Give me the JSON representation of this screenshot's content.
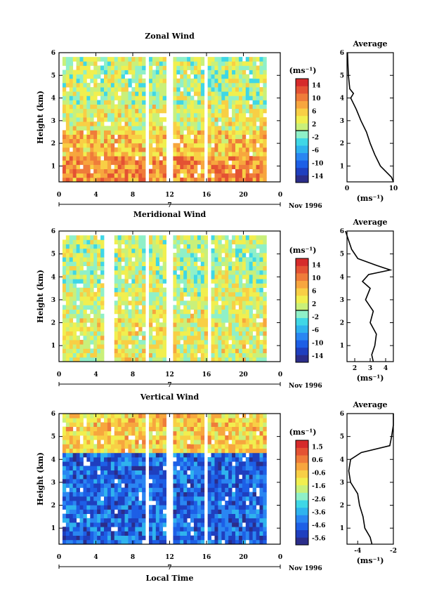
{
  "figure": {
    "xlabel": "Local Time",
    "x_ticks": [
      "0",
      "4",
      "8",
      "12",
      "16",
      "20",
      "0"
    ],
    "date_marker": "7",
    "date_label": "Nov 1996",
    "ylabel": "Height (km)",
    "y_ticks": [
      "1",
      "2",
      "3",
      "4",
      "5",
      "6"
    ],
    "avg_title": "Average",
    "unit_label": "(ms⁻¹)"
  },
  "colormap": [
    "#2b2d8a",
    "#1f3fbf",
    "#1d5fe6",
    "#2a86f2",
    "#2fb3ee",
    "#3fd7e6",
    "#8ff0c8",
    "#c9f07a",
    "#f1ef4f",
    "#f8cf45",
    "#f7a63e",
    "#ef7c3a",
    "#e45233",
    "#d62b2b"
  ],
  "chart_data": [
    {
      "type": "heatmap",
      "title": "Zonal Wind",
      "xlabel": "",
      "ylabel": "Height (km)",
      "x_range": [
        0,
        24
      ],
      "y_range": [
        0.3,
        6
      ],
      "colorbar": {
        "ticks": [
          "14",
          "10",
          "6",
          "2",
          "-2",
          "-6",
          "-10",
          "-14"
        ],
        "range": [
          -16,
          16
        ],
        "marker": 0
      },
      "bands": [
        {
          "y": [
            0.3,
            1.5
          ],
          "value": 9
        },
        {
          "y": [
            1.5,
            2.5
          ],
          "value": 6
        },
        {
          "y": [
            2.5,
            3.7
          ],
          "value": 3
        },
        {
          "y": [
            3.7,
            5.8
          ],
          "value": 1
        }
      ],
      "gaps": [
        [
          0.0,
          0.2
        ],
        [
          9.2,
          9.8
        ],
        [
          11.5,
          12.3
        ],
        [
          15.8,
          16.2
        ],
        [
          22.5,
          24.0
        ]
      ],
      "average": {
        "xlim": [
          0,
          10
        ],
        "xticks": [
          "0",
          "10"
        ],
        "y": [
          0.3,
          0.5,
          1,
          1.5,
          2,
          2.5,
          3,
          3.5,
          4,
          4.2,
          4.4,
          4.6,
          5,
          5.5,
          6
        ],
        "x": [
          10,
          9.6,
          7.2,
          6.0,
          5.0,
          4.2,
          3.0,
          2.0,
          0.8,
          1.4,
          0.6,
          0.5,
          0.3,
          0.2,
          0.1
        ]
      }
    },
    {
      "type": "heatmap",
      "title": "Meridional Wind",
      "xlabel": "",
      "ylabel": "Height (km)",
      "x_range": [
        0,
        24
      ],
      "y_range": [
        0.3,
        6
      ],
      "colorbar": {
        "ticks": [
          "14",
          "10",
          "6",
          "2",
          "-2",
          "-6",
          "-10",
          "-14"
        ],
        "range": [
          -16,
          16
        ],
        "marker": 0
      },
      "bands": [
        {
          "y": [
            0.3,
            1.5
          ],
          "value": 3
        },
        {
          "y": [
            1.5,
            2.5
          ],
          "value": 3
        },
        {
          "y": [
            2.5,
            3.7
          ],
          "value": 2
        },
        {
          "y": [
            3.7,
            5.8
          ],
          "value": 1
        }
      ],
      "gaps": [
        [
          0.0,
          0.2
        ],
        [
          5.0,
          6.0
        ],
        [
          9.2,
          9.8
        ],
        [
          11.6,
          12.2
        ],
        [
          16.0,
          16.4
        ],
        [
          22.5,
          24.0
        ]
      ],
      "average": {
        "xlim": [
          1.5,
          4.5
        ],
        "xticks": [
          "2",
          "3",
          "4"
        ],
        "y": [
          0.3,
          0.6,
          1,
          1.5,
          2,
          2.5,
          3,
          3.5,
          3.8,
          4.1,
          4.3,
          4.5,
          4.8,
          5.2,
          5.6,
          6
        ],
        "x": [
          3.2,
          3.1,
          3.3,
          3.4,
          3.0,
          3.2,
          2.7,
          3.0,
          2.5,
          2.9,
          4.3,
          3.4,
          2.2,
          1.8,
          1.6,
          1.4
        ]
      }
    },
    {
      "type": "heatmap",
      "title": "Vertical Wind",
      "xlabel": "Local Time",
      "ylabel": "Height (km)",
      "x_range": [
        0,
        24
      ],
      "y_range": [
        0.3,
        6
      ],
      "colorbar": {
        "ticks": [
          "1.5",
          "0.6",
          "-0.6",
          "-1.6",
          "-2.6",
          "-3.6",
          "-4.6",
          "-5.6"
        ],
        "range": [
          -6.2,
          2.2
        ],
        "marker": null
      },
      "bands": [
        {
          "y": [
            0.3,
            4.3
          ],
          "value": -4.6
        },
        {
          "y": [
            4.3,
            6.0
          ],
          "value": -0.6
        }
      ],
      "gaps": [
        [
          0.0,
          0.2
        ],
        [
          9.4,
          9.9
        ],
        [
          11.7,
          12.2
        ],
        [
          15.9,
          16.2
        ],
        [
          22.6,
          24.0
        ]
      ],
      "average": {
        "xlim": [
          -4.6,
          -2.0
        ],
        "xticks": [
          "-4",
          "-2"
        ],
        "y": [
          0.3,
          0.6,
          1,
          1.5,
          2,
          2.5,
          3,
          3.5,
          4,
          4.3,
          4.6,
          5,
          5.5,
          6
        ],
        "x": [
          -3.2,
          -3.3,
          -3.6,
          -3.7,
          -3.9,
          -4.0,
          -4.4,
          -4.5,
          -4.4,
          -3.8,
          -2.2,
          -2.1,
          -2.0,
          -2.0
        ]
      }
    }
  ]
}
